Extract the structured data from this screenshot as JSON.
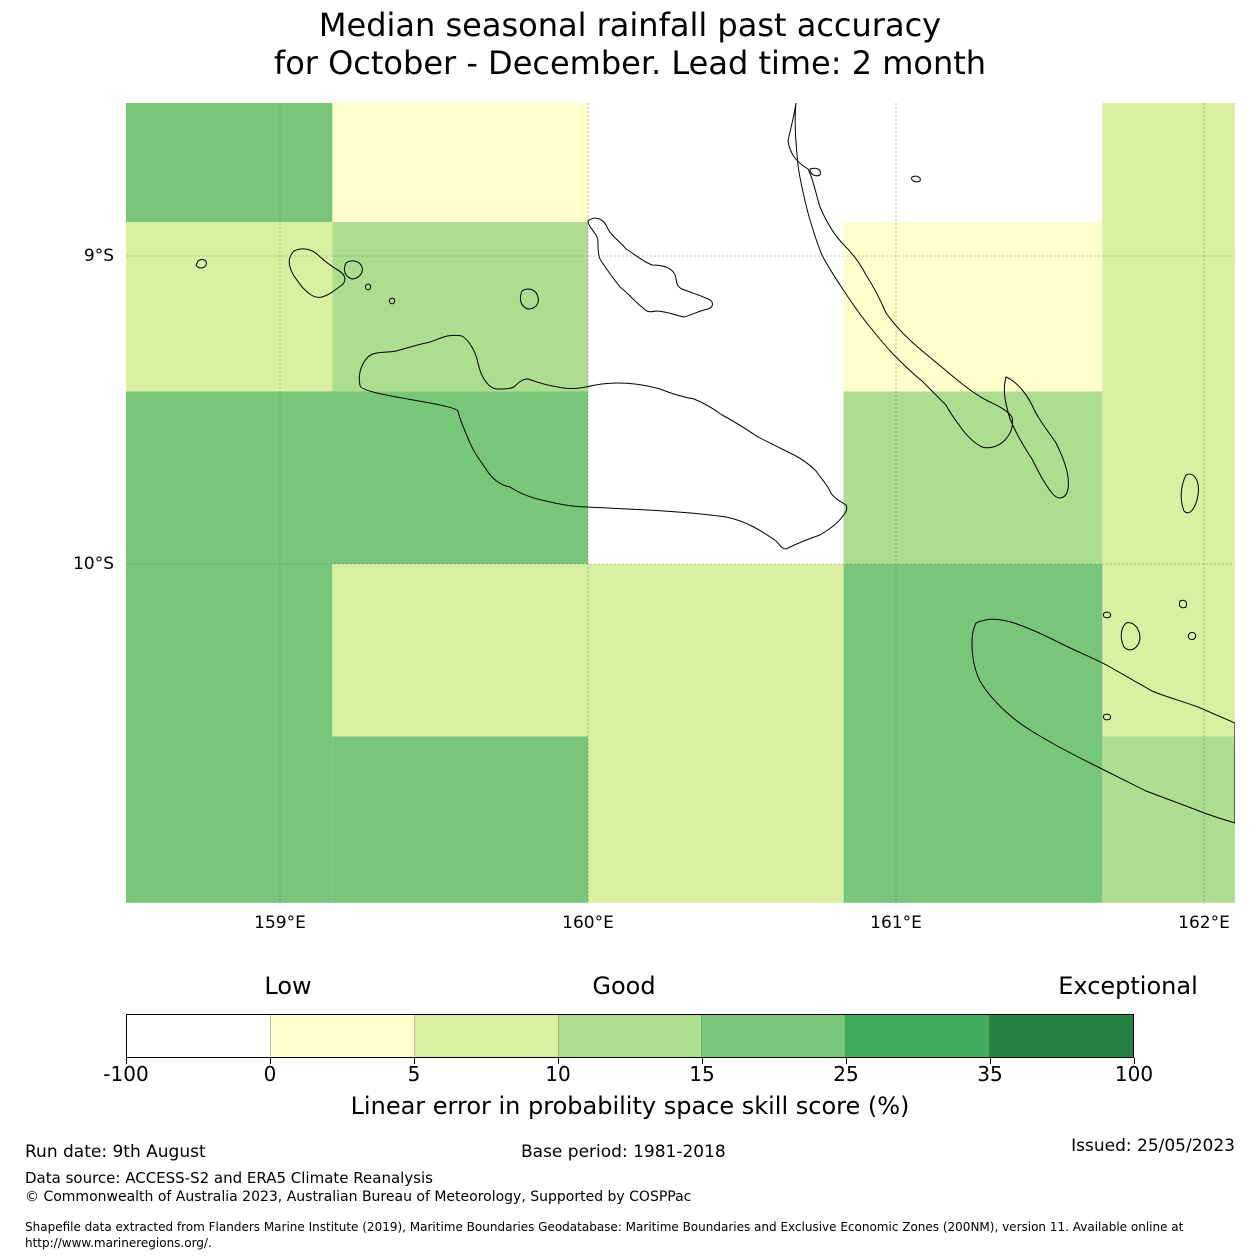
{
  "title": {
    "line1": "Median seasonal rainfall past accuracy",
    "line2": "for October - December. Lead time: 2 month"
  },
  "map": {
    "lon_range": [
      158.5,
      162.1
    ],
    "lat_range": [
      -11.1,
      -8.5
    ],
    "lat_labels": [
      "9°S",
      "10°S"
    ],
    "lon_labels": [
      "159°E",
      "160°E",
      "161°E",
      "162°E"
    ],
    "cells": [
      {
        "lon": [
          158.5,
          159.17
        ],
        "lat": [
          -8.5,
          -8.89
        ],
        "color": "#78c679"
      },
      {
        "lon": [
          159.17,
          160.0
        ],
        "lat": [
          -8.5,
          -8.89
        ],
        "color": "#ffffcc"
      },
      {
        "lon": [
          158.5,
          159.17
        ],
        "lat": [
          -8.89,
          -9.44
        ],
        "color": "#d9f0a3"
      },
      {
        "lon": [
          159.17,
          160.0
        ],
        "lat": [
          -8.89,
          -9.44
        ],
        "color": "#addd8e"
      },
      {
        "lon": [
          160.83,
          161.67
        ],
        "lat": [
          -8.89,
          -9.44
        ],
        "color": "#ffffcc"
      },
      {
        "lon": [
          161.67,
          162.1
        ],
        "lat": [
          -8.5,
          -10.56
        ],
        "color": "#d9f0a3"
      },
      {
        "lon": [
          158.5,
          160.0
        ],
        "lat": [
          -9.44,
          -10.0
        ],
        "color": "#78c679"
      },
      {
        "lon": [
          160.83,
          161.67
        ],
        "lat": [
          -9.44,
          -10.0
        ],
        "color": "#addd8e"
      },
      {
        "lon": [
          158.5,
          159.17
        ],
        "lat": [
          -10.0,
          -11.1
        ],
        "color": "#78c679"
      },
      {
        "lon": [
          159.17,
          160.0
        ],
        "lat": [
          -10.0,
          -10.56
        ],
        "color": "#d9f0a3"
      },
      {
        "lon": [
          159.17,
          160.0
        ],
        "lat": [
          -10.56,
          -11.1
        ],
        "color": "#78c679"
      },
      {
        "lon": [
          160.0,
          160.83
        ],
        "lat": [
          -10.0,
          -11.1
        ],
        "color": "#d9f0a3"
      },
      {
        "lon": [
          160.83,
          161.67
        ],
        "lat": [
          -10.0,
          -11.1
        ],
        "color": "#78c679"
      },
      {
        "lon": [
          161.67,
          162.1
        ],
        "lat": [
          -10.56,
          -11.1
        ],
        "color": "#addd8e"
      }
    ]
  },
  "legend": {
    "low": "Low",
    "good": "Good",
    "exceptional": "Exceptional",
    "colors": [
      "#ffffff",
      "#ffffcc",
      "#d9f0a3",
      "#addd8e",
      "#78c679",
      "#41ab5d",
      "#238443"
    ],
    "ticks": [
      "-100",
      "0",
      "5",
      "10",
      "15",
      "25",
      "35",
      "100"
    ],
    "label": "Linear error in probability space skill score (%)"
  },
  "footer": {
    "run_date": "Run date: 9th August",
    "base_period": "Base period: 1981-2018",
    "issued": "Issued: 25/05/2023",
    "data_source": "Data source: ACCESS-S2 and ERA5 Climate Reanalysis",
    "copyright": "© Commonwealth of Australia 2023, Australian Bureau of Meteorology, Supported by COSPPac",
    "shapefile_line1": "Shapefile data extracted from Flanders Marine Institute (2019), Maritime Boundaries Geodatabase: Maritime Boundaries and Exclusive Economic Zones (200NM), version 11. Available online at",
    "shapefile_line2": "http://www.marineregions.org/."
  }
}
